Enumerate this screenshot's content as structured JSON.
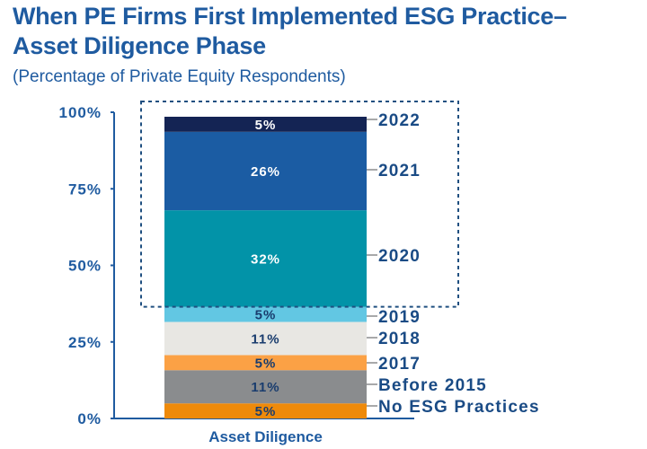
{
  "title_line1": "When PE Firms First Implemented ESG Practice–",
  "title_line2": "Asset Diligence Phase",
  "subtitle": "(Percentage of Private Equity Respondents)",
  "chart_data": {
    "type": "bar",
    "stacked": true,
    "categories": [
      "Asset Diligence"
    ],
    "ylim": [
      0,
      100
    ],
    "yticks": [
      "0%",
      "25%",
      "50%",
      "75%",
      "100%"
    ],
    "grid": false,
    "highlight_box": [
      "2020",
      "2021",
      "2022"
    ],
    "series": [
      {
        "name": "No ESG Practices",
        "values": [
          5
        ],
        "label": "5%",
        "color": "#ee8a0a",
        "label_color": "#1a3d6e"
      },
      {
        "name": "Before 2015",
        "values": [
          11
        ],
        "label": "11%",
        "color": "#8a8c8e",
        "label_color": "#1a3d6e"
      },
      {
        "name": "2017",
        "values": [
          5
        ],
        "label": "5%",
        "color": "#fba145",
        "label_color": "#1a3d6e"
      },
      {
        "name": "2018",
        "values": [
          11
        ],
        "label": "11%",
        "color": "#e8e7e3",
        "label_color": "#1a3d6e"
      },
      {
        "name": "2019",
        "values": [
          5
        ],
        "label": "5%",
        "color": "#62c7e3",
        "label_color": "#1a3d6e"
      },
      {
        "name": "2020",
        "values": [
          32
        ],
        "label": "32%",
        "color": "#0293a8",
        "label_color": "#ffffff"
      },
      {
        "name": "2021",
        "values": [
          26
        ],
        "label": "26%",
        "color": "#1b5ca3",
        "label_color": "#ffffff"
      },
      {
        "name": "2022",
        "values": [
          5
        ],
        "label": "5%",
        "color": "#142454",
        "label_color": "#ffffff"
      }
    ]
  }
}
